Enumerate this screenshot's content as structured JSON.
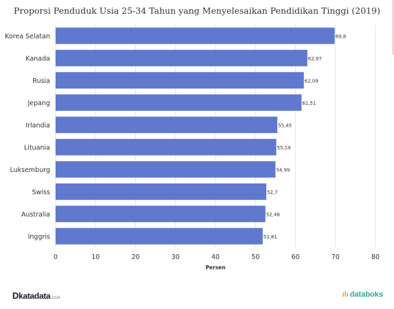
{
  "chart_data": {
    "type": "bar",
    "orientation": "horizontal",
    "title": "Proporsi Penduduk Usia 25-34 Tahun yang Menyelesaikan Pendidikan Tinggi (2019)",
    "xlabel": "Persen",
    "categories": [
      "Korea Selatan",
      "Kanada",
      "Rusia",
      "Jepang",
      "Irlandia",
      "Lituania",
      "Luksemburg",
      "Swiss",
      "Australia",
      "Inggris"
    ],
    "values": [
      69.8,
      62.97,
      62.09,
      61.51,
      55.45,
      55.19,
      54.99,
      52.7,
      52.48,
      51.81
    ],
    "value_labels": [
      "69,8",
      "62,97",
      "62,09",
      "61,51",
      "55,45",
      "55,19",
      "54,99",
      "52,7",
      "52,48",
      "51,81"
    ],
    "xlim": [
      0,
      80
    ],
    "xticks": [
      0,
      10,
      20,
      30,
      40,
      50,
      60,
      70,
      80
    ],
    "grid": "vertical",
    "bar_color": "#6079cf"
  },
  "branding": {
    "left": "katadata",
    "left_mark": "D",
    "left_suffix": ".co.id",
    "right": "databoks"
  }
}
